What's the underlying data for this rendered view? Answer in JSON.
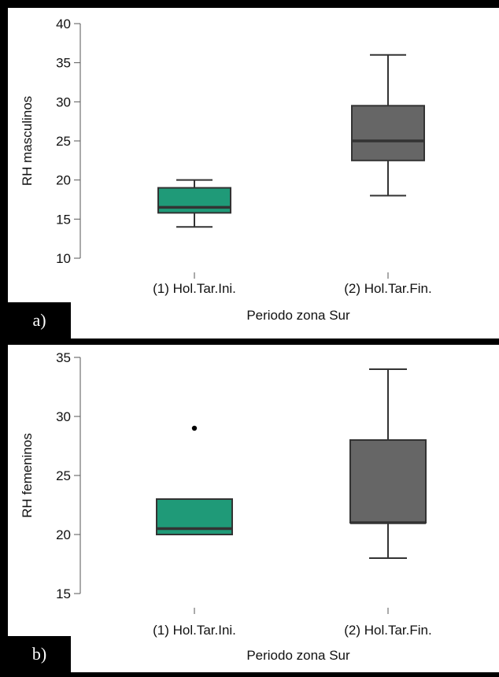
{
  "chart_data": [
    {
      "type": "boxplot",
      "panel_label": "a)",
      "xlabel": "Periodo zona Sur",
      "ylabel": "RH masculinos",
      "ylim": [
        10,
        40
      ],
      "yticks": [
        10,
        15,
        20,
        25,
        30,
        35,
        40
      ],
      "categories": [
        "(1) Hol.Tar.Ini.",
        "(2) Hol.Tar.Fin."
      ],
      "boxes": [
        {
          "category": "(1) Hol.Tar.Ini.",
          "whisker_low": 14,
          "q1": 15.8,
          "median": 16.5,
          "q3": 19,
          "whisker_high": 20,
          "outliers": [],
          "color": "#1f9a78"
        },
        {
          "category": "(2) Hol.Tar.Fin.",
          "whisker_low": 18,
          "q1": 22.5,
          "median": 25,
          "q3": 29.5,
          "whisker_high": 36,
          "outliers": [],
          "color": "#666666"
        }
      ]
    },
    {
      "type": "boxplot",
      "panel_label": "b)",
      "xlabel": "Periodo zona Sur",
      "ylabel": "RH femeninos",
      "ylim": [
        15,
        35
      ],
      "yticks": [
        15,
        20,
        25,
        30,
        35
      ],
      "categories": [
        "(1) Hol.Tar.Ini.",
        "(2) Hol.Tar.Fin."
      ],
      "boxes": [
        {
          "category": "(1) Hol.Tar.Ini.",
          "whisker_low": 20,
          "q1": 20,
          "median": 20.5,
          "q3": 23,
          "whisker_high": 23,
          "outliers": [
            29
          ],
          "color": "#1f9a78"
        },
        {
          "category": "(2) Hol.Tar.Fin.",
          "whisker_low": 18,
          "q1": 21,
          "median": 21,
          "q3": 28,
          "whisker_high": 34,
          "outliers": [],
          "color": "#666666"
        }
      ]
    }
  ]
}
